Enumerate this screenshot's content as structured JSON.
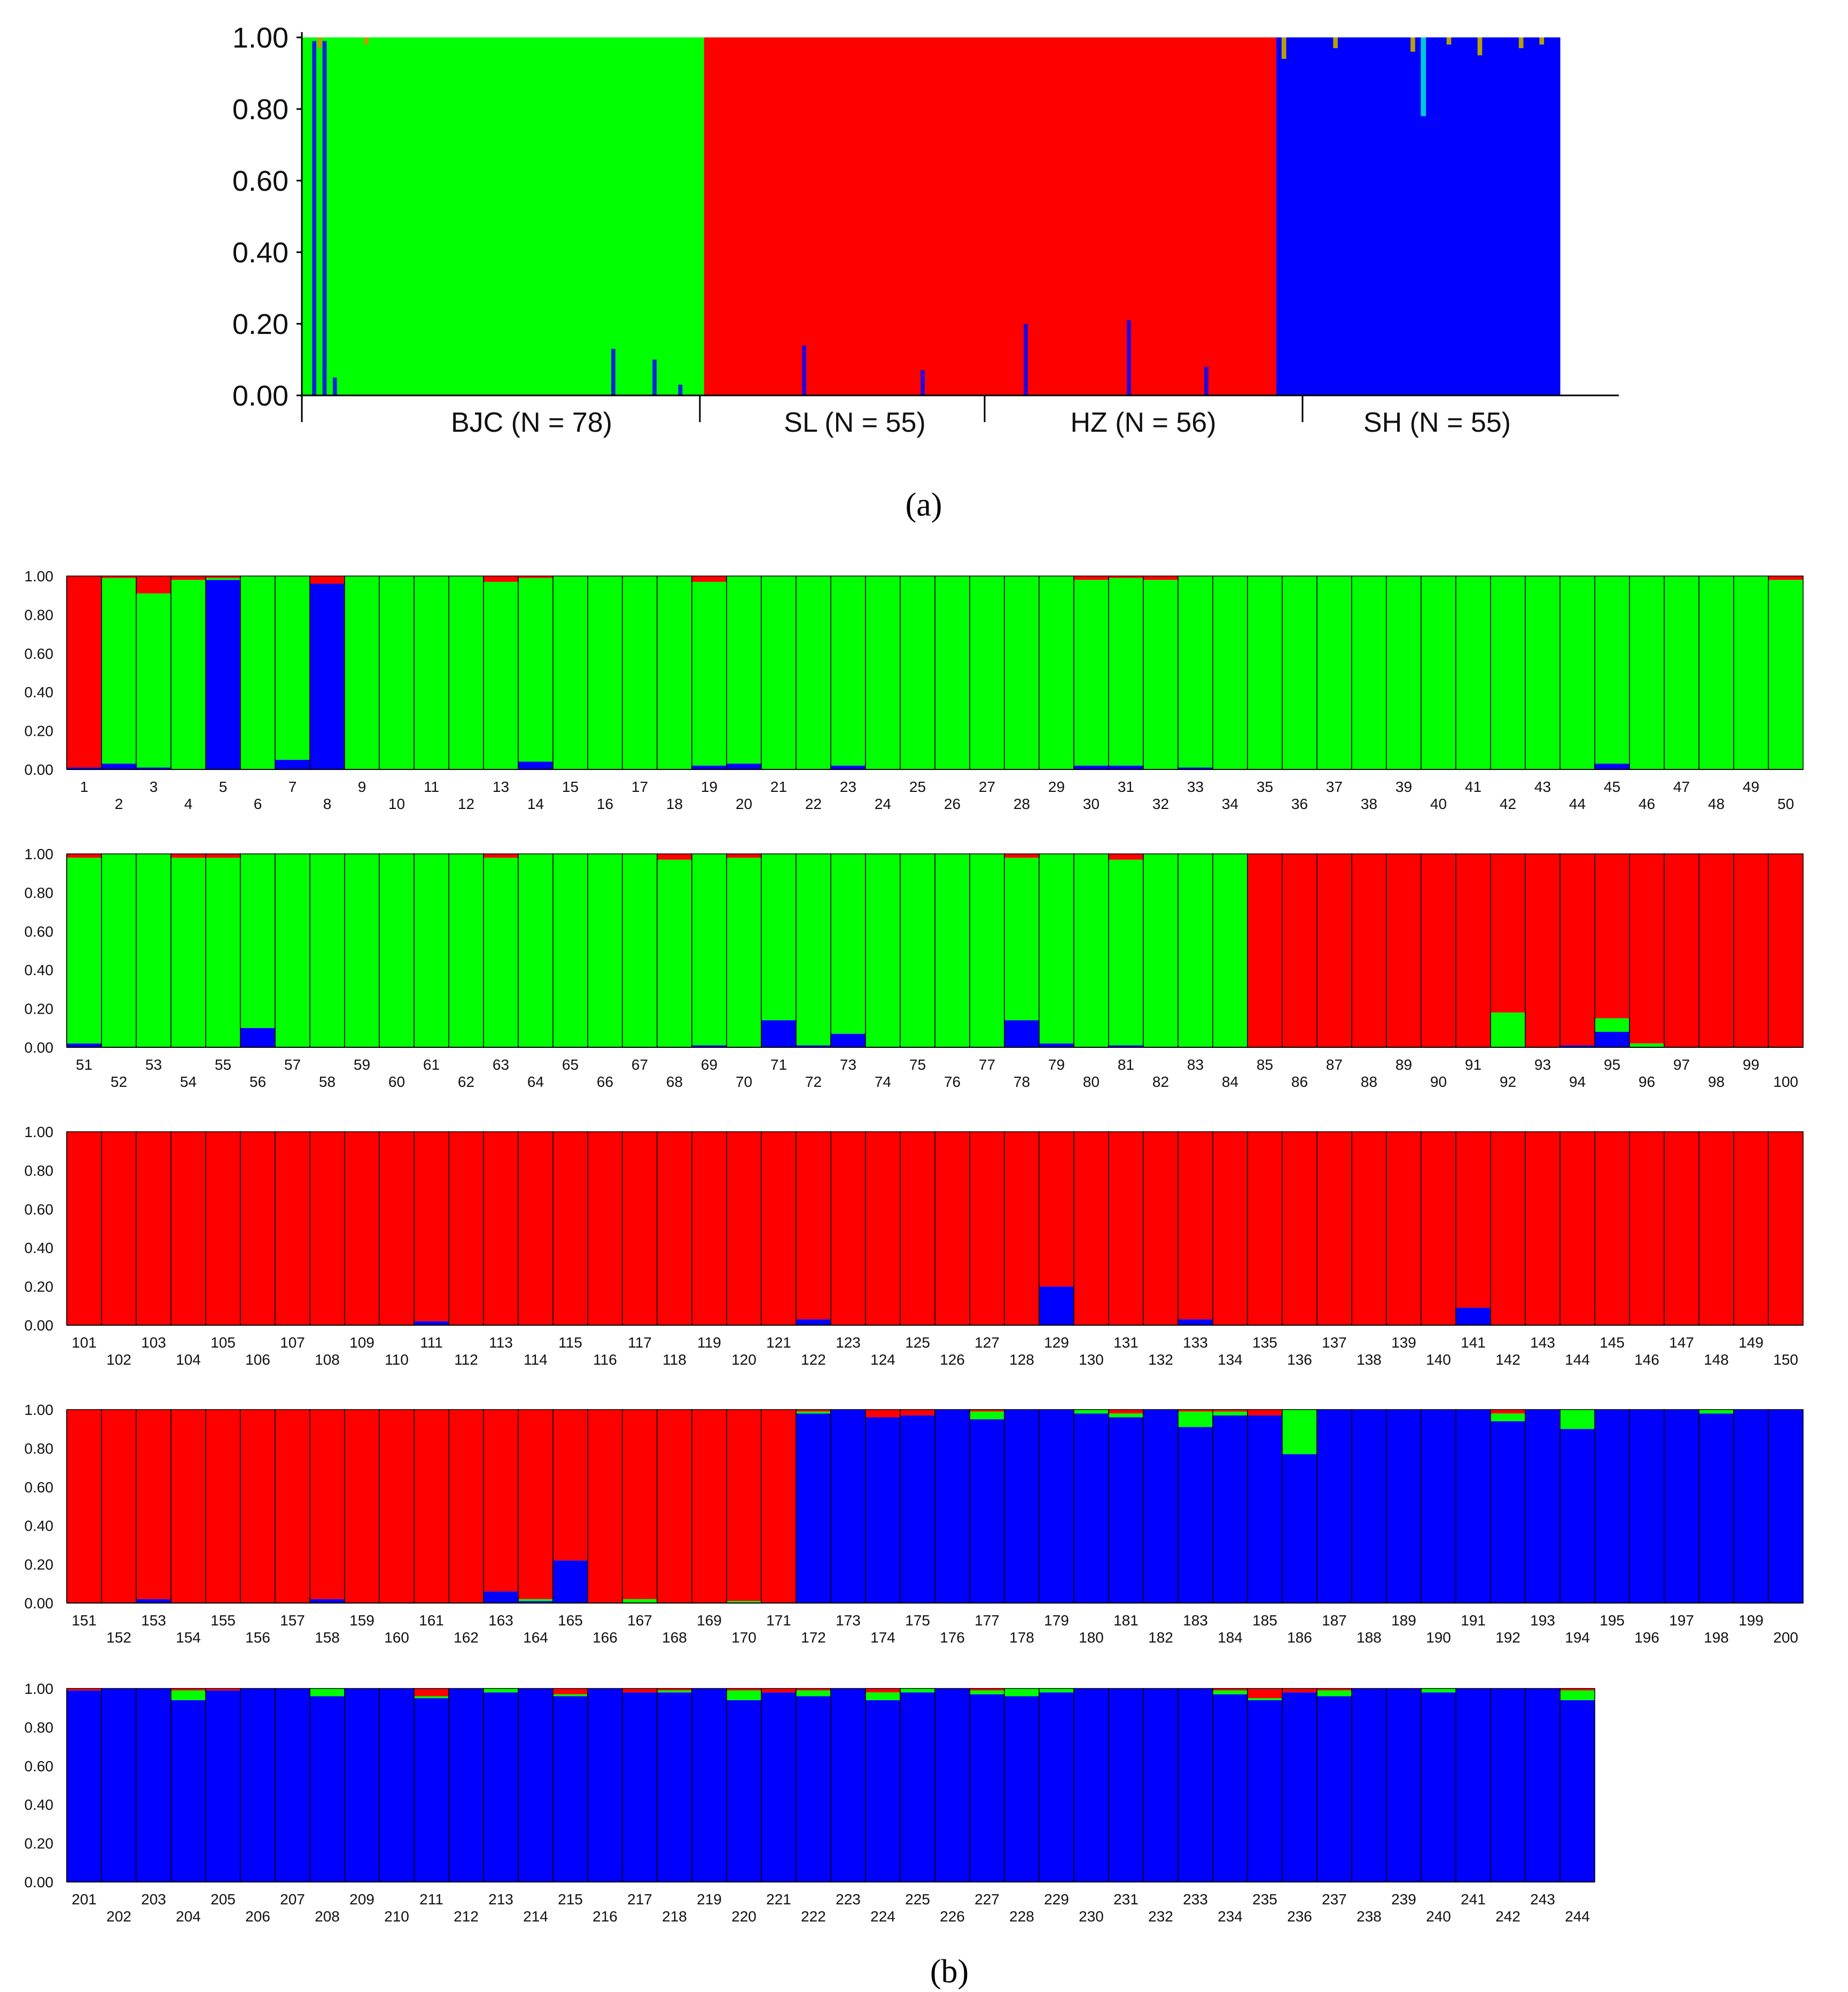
{
  "colors": {
    "green": "#00ff00",
    "red": "#ff0000",
    "blue": "#0000ff"
  },
  "captions": {
    "a": "(a)",
    "b": "(b)"
  },
  "chart_data": [
    {
      "type": "bar",
      "subtype": "stacked-admixture-overview",
      "panel": "a",
      "title": "",
      "xlabel": "",
      "ylabel": "",
      "ylim": [
        0,
        1
      ],
      "yticks": [
        "0.00",
        "0.20",
        "0.40",
        "0.60",
        "0.80",
        "1.00"
      ],
      "grid": false,
      "populations": [
        {
          "label": "BJC (N = 78)",
          "n": 78,
          "dominant": "green"
        },
        {
          "label": "SL (N = 55)",
          "n": 55,
          "dominant": "red"
        },
        {
          "label": "HZ (N = 56)",
          "n": 56,
          "dominant": "red"
        },
        {
          "label": "SH (N = 55)",
          "n": 55,
          "dominant": "blue"
        }
      ],
      "note_series_order": [
        "blue",
        "green",
        "red"
      ]
    },
    {
      "type": "bar",
      "subtype": "stacked-admixture-individuals",
      "panel": "b",
      "title": "",
      "xlabel": "",
      "ylabel": "",
      "ylim": [
        0,
        1
      ],
      "yticks": [
        "0.00",
        "0.20",
        "0.40",
        "0.60",
        "0.80",
        "1.00"
      ],
      "grid": false,
      "individuals_per_row": 50,
      "n_individuals": 244,
      "series_order": [
        "blue",
        "green",
        "red"
      ],
      "default_by_range": [
        {
          "from": 1,
          "to": 84,
          "color": "green"
        },
        {
          "from": 85,
          "to": 171,
          "color": "red"
        },
        {
          "from": 172,
          "to": 244,
          "color": "blue"
        }
      ],
      "exceptions": {
        "1": [
          0.01,
          0.0,
          0.99
        ],
        "2": [
          0.03,
          0.96,
          0.01
        ],
        "3": [
          0.01,
          0.9,
          0.09
        ],
        "4": [
          0.0,
          0.98,
          0.02
        ],
        "5": [
          0.98,
          0.01,
          0.01
        ],
        "7": [
          0.05,
          0.95,
          0.0
        ],
        "8": [
          0.96,
          0.0,
          0.04
        ],
        "13": [
          0.0,
          0.97,
          0.03
        ],
        "14": [
          0.04,
          0.95,
          0.01
        ],
        "19": [
          0.02,
          0.95,
          0.03
        ],
        "20": [
          0.03,
          0.97,
          0.0
        ],
        "23": [
          0.02,
          0.98,
          0.0
        ],
        "30": [
          0.02,
          0.96,
          0.02
        ],
        "31": [
          0.02,
          0.97,
          0.01
        ],
        "32": [
          0.0,
          0.98,
          0.02
        ],
        "33": [
          0.01,
          0.99,
          0.0
        ],
        "45": [
          0.03,
          0.97,
          0.0
        ],
        "50": [
          0.0,
          0.98,
          0.02
        ],
        "51": [
          0.02,
          0.96,
          0.02
        ],
        "54": [
          0.0,
          0.98,
          0.02
        ],
        "55": [
          0.0,
          0.98,
          0.02
        ],
        "56": [
          0.1,
          0.9,
          0.0
        ],
        "63": [
          0.0,
          0.98,
          0.02
        ],
        "68": [
          0.0,
          0.97,
          0.03
        ],
        "69": [
          0.01,
          0.99,
          0.0
        ],
        "70": [
          0.0,
          0.98,
          0.02
        ],
        "71": [
          0.14,
          0.86,
          0.0
        ],
        "72": [
          0.01,
          0.99,
          0.0
        ],
        "73": [
          0.07,
          0.93,
          0.0
        ],
        "78": [
          0.14,
          0.84,
          0.02
        ],
        "79": [
          0.02,
          0.98,
          0.0
        ],
        "81": [
          0.01,
          0.96,
          0.03
        ],
        "92": [
          0.0,
          0.18,
          0.82
        ],
        "94": [
          0.01,
          0.0,
          0.99
        ],
        "95": [
          0.08,
          0.07,
          0.85
        ],
        "96": [
          0.0,
          0.02,
          0.98
        ],
        "111": [
          0.02,
          0.0,
          0.98
        ],
        "122": [
          0.03,
          0.0,
          0.97
        ],
        "129": [
          0.2,
          0.0,
          0.8
        ],
        "133": [
          0.03,
          0.0,
          0.97
        ],
        "141": [
          0.09,
          0.0,
          0.91
        ],
        "153": [
          0.02,
          0.0,
          0.98
        ],
        "158": [
          0.02,
          0.0,
          0.98
        ],
        "163": [
          0.06,
          0.0,
          0.94
        ],
        "164": [
          0.01,
          0.01,
          0.98
        ],
        "165": [
          0.22,
          0.0,
          0.78
        ],
        "167": [
          0.0,
          0.02,
          0.98
        ],
        "170": [
          0.0,
          0.01,
          0.99
        ],
        "172": [
          0.98,
          0.01,
          0.01
        ],
        "174": [
          0.96,
          0.0,
          0.04
        ],
        "175": [
          0.97,
          0.0,
          0.03
        ],
        "177": [
          0.95,
          0.04,
          0.01
        ],
        "180": [
          0.98,
          0.02,
          0.0
        ],
        "181": [
          0.96,
          0.02,
          0.02
        ],
        "183": [
          0.91,
          0.08,
          0.01
        ],
        "184": [
          0.97,
          0.02,
          0.01
        ],
        "185": [
          0.97,
          0.0,
          0.03
        ],
        "186": [
          0.77,
          0.23,
          0.0
        ],
        "192": [
          0.94,
          0.04,
          0.02
        ],
        "194": [
          0.9,
          0.1,
          0.0
        ],
        "198": [
          0.98,
          0.02,
          0.0
        ],
        "201": [
          0.99,
          0.0,
          0.01
        ],
        "204": [
          0.94,
          0.05,
          0.01
        ],
        "205": [
          0.99,
          0.0,
          0.01
        ],
        "208": [
          0.96,
          0.04,
          0.0
        ],
        "211": [
          0.95,
          0.01,
          0.04
        ],
        "213": [
          0.98,
          0.02,
          0.0
        ],
        "215": [
          0.96,
          0.01,
          0.03
        ],
        "217": [
          0.98,
          0.0,
          0.02
        ],
        "218": [
          0.98,
          0.01,
          0.01
        ],
        "220": [
          0.94,
          0.05,
          0.01
        ],
        "221": [
          0.98,
          0.0,
          0.02
        ],
        "222": [
          0.96,
          0.03,
          0.01
        ],
        "224": [
          0.94,
          0.04,
          0.02
        ],
        "225": [
          0.98,
          0.02,
          0.0
        ],
        "227": [
          0.97,
          0.02,
          0.01
        ],
        "228": [
          0.96,
          0.04,
          0.0
        ],
        "229": [
          0.98,
          0.02,
          0.0
        ],
        "234": [
          0.97,
          0.02,
          0.01
        ],
        "235": [
          0.94,
          0.01,
          0.05
        ],
        "236": [
          0.98,
          0.0,
          0.02
        ],
        "237": [
          0.96,
          0.03,
          0.01
        ],
        "240": [
          0.98,
          0.02,
          0.0
        ],
        "244": [
          0.94,
          0.05,
          0.01
        ]
      }
    }
  ]
}
